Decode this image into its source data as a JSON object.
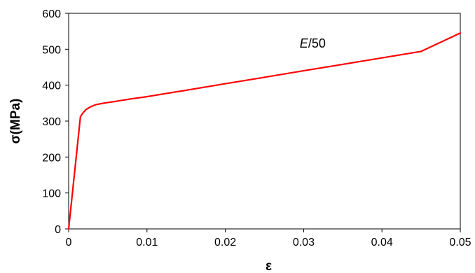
{
  "chart_data": {
    "type": "line",
    "xlabel": "ε",
    "ylabel": "σ(MPa)",
    "xlim": [
      0,
      0.05
    ],
    "ylim": [
      0,
      600
    ],
    "x_ticks": [
      0,
      0.01,
      0.02,
      0.03,
      0.04,
      0.05
    ],
    "x_tick_labels": [
      "0",
      "0.01",
      "0.02",
      "0.03",
      "0.04",
      "0.05"
    ],
    "y_ticks": [
      0,
      100,
      200,
      300,
      400,
      500,
      600
    ],
    "y_tick_labels": [
      "0",
      "100",
      "200",
      "300",
      "400",
      "500",
      "600"
    ],
    "grid": false,
    "annotations": [
      {
        "text_italic": "E",
        "text": "/50",
        "x": 0.0295,
        "y": 505
      }
    ],
    "series": [
      {
        "color": "#ff0000",
        "x": [
          0,
          0.0015,
          0.0018,
          0.0022,
          0.0028,
          0.0035,
          0.0045,
          0.006,
          0.008,
          0.01,
          0.015,
          0.02,
          0.025,
          0.03,
          0.035,
          0.04,
          0.045,
          0.05
        ],
        "y": [
          0,
          312,
          322,
          332,
          340,
          346,
          350,
          355,
          362,
          368,
          386,
          404,
          422,
          440,
          458,
          476,
          494,
          545
        ]
      }
    ]
  }
}
